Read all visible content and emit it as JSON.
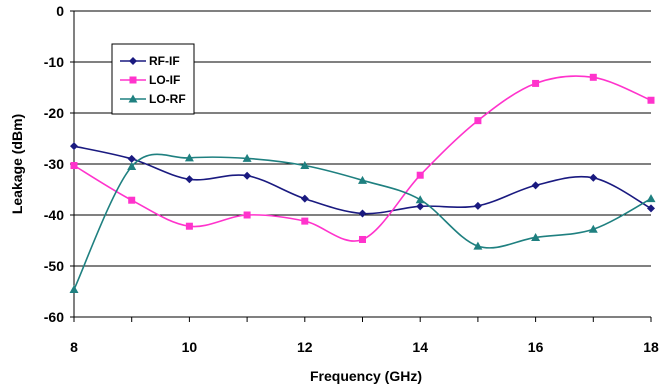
{
  "chart_data": {
    "type": "line",
    "title": "",
    "xlabel": "Frequency (GHz)",
    "ylabel": "Leakage (dBm)",
    "xlim": [
      8,
      18
    ],
    "ylim": [
      -60,
      0
    ],
    "xticks": [
      8,
      10,
      12,
      14,
      16,
      18
    ],
    "yticks": [
      0,
      -10,
      -20,
      -30,
      -40,
      -50,
      -60
    ],
    "grid": "horizontal",
    "legend_position": "top-left",
    "x": [
      8,
      9,
      10,
      11,
      12,
      13,
      14,
      15,
      16,
      17,
      18
    ],
    "series": [
      {
        "name": "RF-IF",
        "color": "#1a1a80",
        "marker": "diamond",
        "values": [
          -26.5,
          -29,
          -33,
          -32.3,
          -36.8,
          -39.7,
          -38.3,
          -38.2,
          -34.2,
          -32.7,
          -38.7
        ]
      },
      {
        "name": "LO-IF",
        "color": "#ff33cc",
        "marker": "square",
        "values": [
          -30.3,
          -37.1,
          -42.2,
          -40.0,
          -41.2,
          -44.8,
          -32.2,
          -21.5,
          -14.2,
          -13.0,
          -17.5
        ]
      },
      {
        "name": "LO-RF",
        "color": "#1f8080",
        "marker": "triangle",
        "values": [
          -54.6,
          -30.5,
          -28.8,
          -28.9,
          -30.3,
          -33.2,
          -37.0,
          -46.1,
          -44.4,
          -42.8,
          -36.8
        ]
      }
    ]
  }
}
